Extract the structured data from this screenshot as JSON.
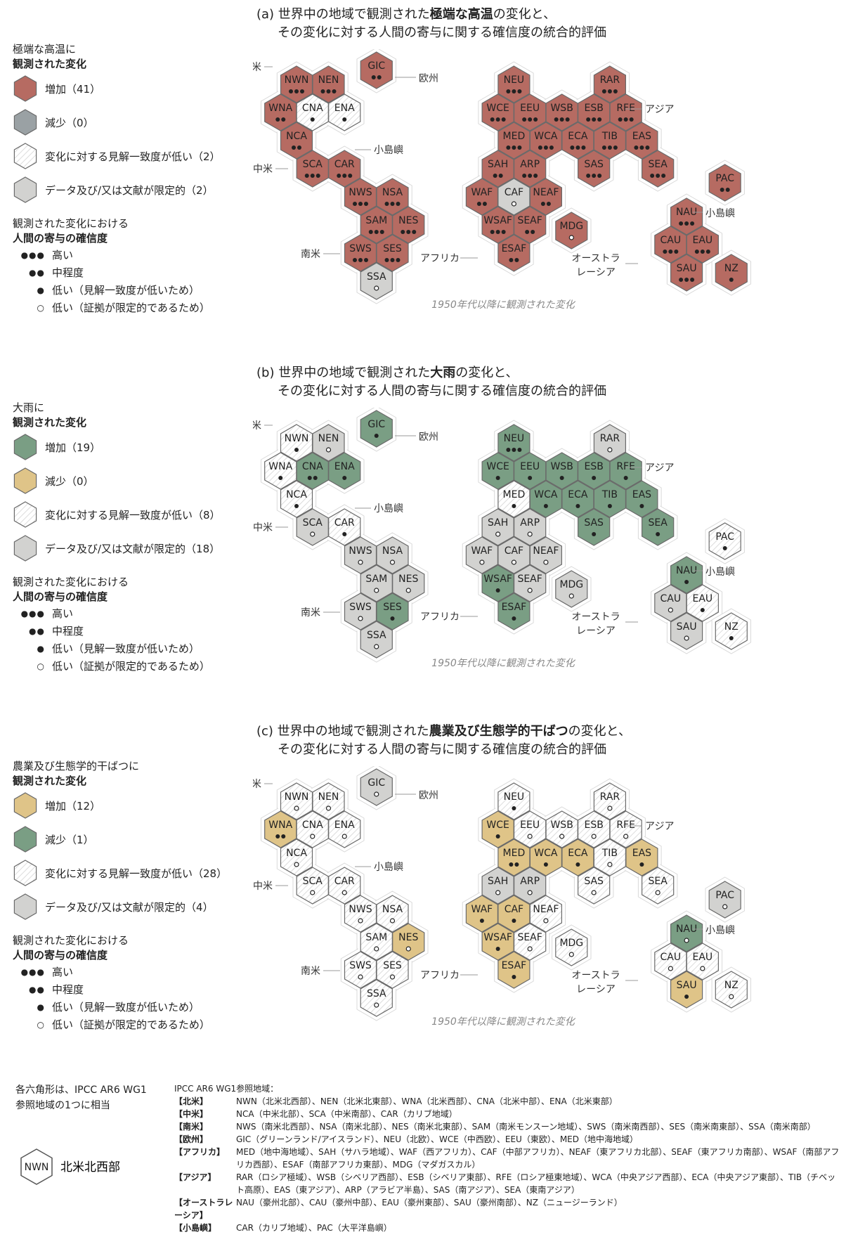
{
  "panels": [
    {
      "id": "a",
      "title_pre": "(a) 世界中の地域で観測された",
      "title_bold": "極端な高温",
      "title_post": "の変化と、",
      "title_line2": "その変化に対する人間の寄与に関する確信度の統合的評価",
      "legend_head1": "極端な高温に",
      "legend_head2": "観測された変化",
      "cat_labels": [
        "増加（41）",
        "減少（0）",
        "変化に対する見解一致度が低い（2）",
        "データ及び/又は文献が限定的（2）"
      ],
      "colors": {
        "inc": "#b66b62",
        "dec": "#9aa1a4",
        "low": "#ffffff",
        "lim": "#d2d2d0"
      },
      "caption": "1950年代以降に観測された変化",
      "hexes": {
        "NWN": [
          "inc",
          3
        ],
        "NEN": [
          "inc",
          3
        ],
        "GIC": [
          "inc",
          2
        ],
        "WNA": [
          "inc",
          2
        ],
        "CNA": [
          "low",
          1
        ],
        "ENA": [
          "low",
          1
        ],
        "NCA": [
          "inc",
          2
        ],
        "SCA": [
          "inc",
          3
        ],
        "CAR": [
          "inc",
          3
        ],
        "NWS": [
          "inc",
          3
        ],
        "NSA": [
          "inc",
          3
        ],
        "SAM": [
          "inc",
          3
        ],
        "NES": [
          "inc",
          3
        ],
        "SWS": [
          "inc",
          3
        ],
        "SES": [
          "inc",
          3
        ],
        "SSA": [
          "lim",
          0
        ],
        "NEU": [
          "inc",
          3
        ],
        "RAR": [
          "inc",
          3
        ],
        "WCE": [
          "inc",
          3
        ],
        "EEU": [
          "inc",
          3
        ],
        "WSB": [
          "inc",
          3
        ],
        "ESB": [
          "inc",
          3
        ],
        "RFE": [
          "inc",
          3
        ],
        "MED": [
          "inc",
          3
        ],
        "WCA": [
          "inc",
          3
        ],
        "ECA": [
          "inc",
          3
        ],
        "TIB": [
          "inc",
          3
        ],
        "EAS": [
          "inc",
          3
        ],
        "SAH": [
          "inc",
          2
        ],
        "ARP": [
          "inc",
          3
        ],
        "SAS": [
          "inc",
          3
        ],
        "SEA": [
          "inc",
          3
        ],
        "WAF": [
          "inc",
          2
        ],
        "CAF": [
          "lim",
          0
        ],
        "NEAF": [
          "inc",
          2
        ],
        "WSAF": [
          "inc",
          3
        ],
        "SEAF": [
          "inc",
          2
        ],
        "ESAF": [
          "inc",
          2
        ],
        "MDG": [
          "inc",
          0
        ],
        "PAC": [
          "inc",
          2
        ],
        "NAU": [
          "inc",
          3
        ],
        "CAU": [
          "inc",
          3
        ],
        "EAU": [
          "inc",
          3
        ],
        "SAU": [
          "inc",
          3
        ],
        "NZ": [
          "inc",
          1
        ]
      }
    },
    {
      "id": "b",
      "title_pre": "(b) 世界中の地域で観測された",
      "title_bold": "大雨",
      "title_post": "の変化と、",
      "title_line2": "その変化に対する人間の寄与に関する確信度の統合的評価",
      "legend_head1": "大雨に",
      "legend_head2": "観測された変化",
      "cat_labels": [
        "増加（19）",
        "減少（0）",
        "変化に対する見解一致度が低い（8）",
        "データ及び/又は文献が限定的（18）"
      ],
      "colors": {
        "inc": "#7a9e84",
        "dec": "#dfc488",
        "low": "#ffffff",
        "lim": "#d2d2d0"
      },
      "caption": "1950年代以降に観測された変化",
      "hexes": {
        "NWN": [
          "low",
          1
        ],
        "NEN": [
          "lim",
          0
        ],
        "GIC": [
          "inc",
          1
        ],
        "WNA": [
          "low",
          1
        ],
        "CNA": [
          "inc",
          2
        ],
        "ENA": [
          "inc",
          1
        ],
        "NCA": [
          "low",
          1
        ],
        "SCA": [
          "lim",
          0
        ],
        "CAR": [
          "low",
          1
        ],
        "NWS": [
          "lim",
          0
        ],
        "NSA": [
          "lim",
          0
        ],
        "SAM": [
          "lim",
          0
        ],
        "NES": [
          "lim",
          0
        ],
        "SWS": [
          "lim",
          0
        ],
        "SES": [
          "inc",
          1
        ],
        "SSA": [
          "lim",
          0
        ],
        "NEU": [
          "inc",
          3
        ],
        "RAR": [
          "lim",
          0
        ],
        "WCE": [
          "inc",
          1
        ],
        "EEU": [
          "inc",
          1
        ],
        "WSB": [
          "inc",
          1
        ],
        "ESB": [
          "inc",
          1
        ],
        "RFE": [
          "inc",
          1
        ],
        "MED": [
          "low",
          1
        ],
        "WCA": [
          "inc",
          1
        ],
        "ECA": [
          "inc",
          1
        ],
        "TIB": [
          "inc",
          1
        ],
        "EAS": [
          "inc",
          1
        ],
        "SAH": [
          "lim",
          0
        ],
        "ARP": [
          "lim",
          0
        ],
        "SAS": [
          "inc",
          1
        ],
        "SEA": [
          "inc",
          1
        ],
        "WAF": [
          "lim",
          0
        ],
        "CAF": [
          "lim",
          0
        ],
        "NEAF": [
          "lim",
          0
        ],
        "WSAF": [
          "inc",
          1
        ],
        "SEAF": [
          "lim",
          0
        ],
        "ESAF": [
          "inc",
          1
        ],
        "MDG": [
          "lim",
          0
        ],
        "PAC": [
          "low",
          1
        ],
        "NAU": [
          "inc",
          1
        ],
        "CAU": [
          "lim",
          0
        ],
        "EAU": [
          "low",
          1
        ],
        "SAU": [
          "lim",
          0
        ],
        "NZ": [
          "low",
          1
        ]
      }
    },
    {
      "id": "c",
      "title_pre": "(c) 世界中の地域で観測された",
      "title_bold": "農業及び生態学的干ばつ",
      "title_post": "の変化と、",
      "title_line2": "その変化に対する人間の寄与に関する確信度の統合的評価",
      "legend_head1": "農業及び生態学的干ばつに",
      "legend_head2": "観測された変化",
      "cat_labels": [
        "増加（12）",
        "減少（1）",
        "変化に対する見解一致度が低い（28）",
        "データ及び/又は文献が限定的（4）"
      ],
      "colors": {
        "inc": "#dfc488",
        "dec": "#7a9e84",
        "low": "#ffffff",
        "lim": "#d2d2d0"
      },
      "caption": "1950年代以降に観測された変化",
      "hexes": {
        "NWN": [
          "low",
          0
        ],
        "NEN": [
          "low",
          0
        ],
        "GIC": [
          "lim",
          0
        ],
        "WNA": [
          "inc",
          2
        ],
        "CNA": [
          "low",
          0
        ],
        "ENA": [
          "low",
          0
        ],
        "NCA": [
          "low",
          0
        ],
        "SCA": [
          "low",
          0
        ],
        "CAR": [
          "low",
          0
        ],
        "NWS": [
          "low",
          0
        ],
        "NSA": [
          "low",
          0
        ],
        "SAM": [
          "low",
          0
        ],
        "NES": [
          "inc",
          0
        ],
        "SWS": [
          "low",
          0
        ],
        "SES": [
          "low",
          0
        ],
        "SSA": [
          "low",
          0
        ],
        "NEU": [
          "low",
          1
        ],
        "RAR": [
          "low",
          0
        ],
        "WCE": [
          "inc",
          1
        ],
        "EEU": [
          "low",
          0
        ],
        "WSB": [
          "low",
          0
        ],
        "ESB": [
          "low",
          0
        ],
        "RFE": [
          "low",
          0
        ],
        "MED": [
          "inc",
          2
        ],
        "WCA": [
          "inc",
          1
        ],
        "ECA": [
          "inc",
          1
        ],
        "TIB": [
          "low",
          0
        ],
        "EAS": [
          "inc",
          1
        ],
        "SAH": [
          "lim",
          0
        ],
        "ARP": [
          "lim",
          0
        ],
        "SAS": [
          "low",
          0
        ],
        "SEA": [
          "low",
          0
        ],
        "WAF": [
          "inc",
          1
        ],
        "CAF": [
          "inc",
          1
        ],
        "NEAF": [
          "low",
          0
        ],
        "WSAF": [
          "inc",
          1
        ],
        "SEAF": [
          "low",
          0
        ],
        "ESAF": [
          "inc",
          1
        ],
        "MDG": [
          "low",
          0
        ],
        "PAC": [
          "lim",
          0
        ],
        "NAU": [
          "dec",
          0
        ],
        "CAU": [
          "low",
          0
        ],
        "EAU": [
          "low",
          0
        ],
        "SAU": [
          "inc",
          1
        ],
        "NZ": [
          "low",
          0
        ]
      }
    }
  ],
  "confidence": {
    "head1": "観測された変化における",
    "head2": "人間の寄与の確信度",
    "dots": [
      "●●●",
      "●●",
      "●",
      "○"
    ],
    "levels": [
      "高い",
      "中程度",
      "低い（見解一致度が低いため）",
      "低い（証拠が限定的であるため）"
    ]
  },
  "region_labels": {
    "north_america": "北米",
    "europe": "欧州",
    "asia": "アジア",
    "small_islands": "小島嶼",
    "central_america": "中米",
    "south_america": "南米",
    "africa": "アフリカ",
    "australasia_1": "オーストラ",
    "australasia_2": "レーシア"
  },
  "footer": {
    "note": "各六角形は、IPCC AR6 WG1参照地域の1つに相当",
    "example_code": "NWN",
    "example_label": "北米北西部",
    "refs_title": "IPCC AR6 WG1参照地域：",
    "refs": [
      {
        "cat": "【北米】",
        "text": "NWN（北米北西部）、NEN（北米北東部）、WNA（北米西部）、CNA（北米中部）、ENA（北米東部）"
      },
      {
        "cat": "【中米】",
        "text": "NCA（中米北部）、SCA（中米南部）、CAR（カリブ地域）"
      },
      {
        "cat": "【南米】",
        "text": "NWS（南米北西部）、NSA（南米北部）、NES（南米北東部）、SAM（南米モンスーン地域）、SWS（南米南西部）、SES（南米南東部）、SSA（南米南部）"
      },
      {
        "cat": "【欧州】",
        "text": "GIC（グリーンランド/アイスランド）、NEU（北欧）、WCE（中西欧）、EEU（東欧）、MED（地中海地域）"
      },
      {
        "cat": "【アフリカ】",
        "text": "MED（地中海地域）、SAH（サハラ地域）、WAF（西アフリカ）、CAF（中部アフリカ）、NEAF（東アフリカ北部）、SEAF（東アフリカ南部）、WSAF（南部アフリカ西部）、ESAF（南部アフリカ東部）、MDG（マダガスカル）"
      },
      {
        "cat": "【アジア】",
        "text": "RAR（ロシア極域）、WSB（シベリア西部）、ESB（シベリア東部）、RFE（ロシア極東地域）、WCA（中央アジア西部）、ECA（中央アジア東部）、TIB（チベット高原）、EAS（東アジア）、ARP（アラビア半島）、SAS（南アジア）、SEA（東南アジア）"
      },
      {
        "cat": "【オーストラレーシア】",
        "text": "NAU（豪州北部）、CAU（豪州中部）、EAU（豪州東部）、SAU（豪州南部）、NZ（ニュージーランド）"
      },
      {
        "cat": "【小島嶼】",
        "text": "CAR（カリブ地域）、PAC（大平洋島嶼）"
      }
    ]
  }
}
